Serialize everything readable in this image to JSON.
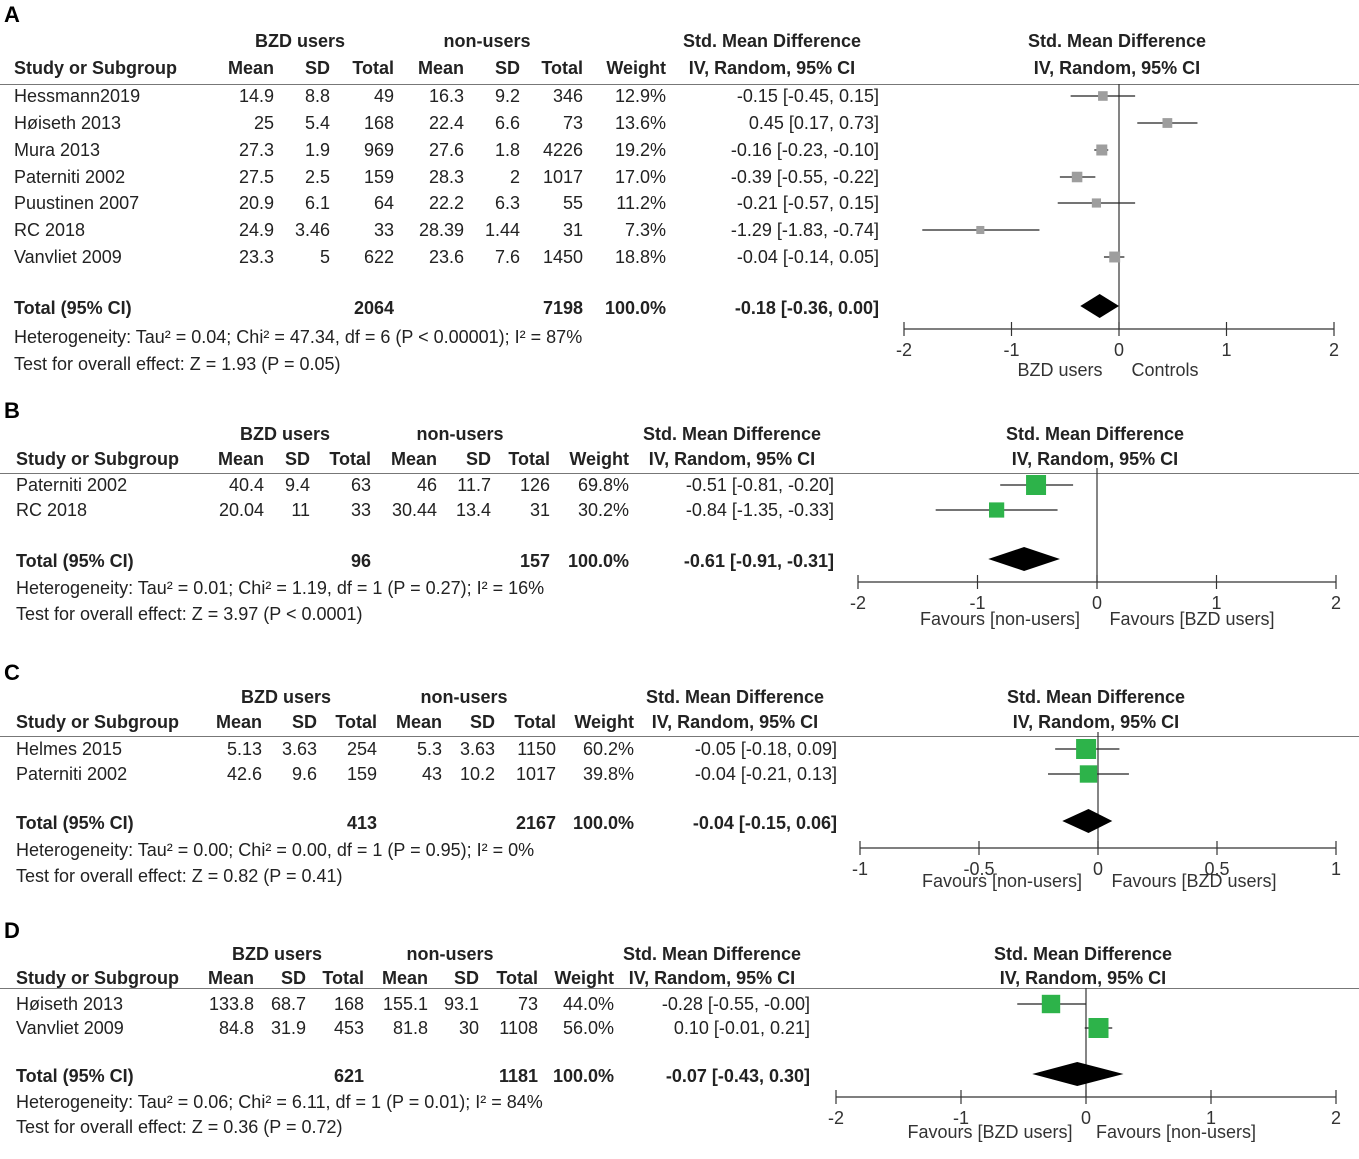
{
  "chart_data": [
    {
      "type": "forest",
      "panel_label": "A",
      "group1_label": "BZD users",
      "group2_label": "non-users",
      "effect_header": "Std. Mean Difference",
      "method_header": "IV, Random, 95% CI",
      "plot_header": "Std. Mean Difference",
      "plot_method_header": "IV, Random, 95% CI",
      "col_headers": [
        "Study or Subgroup",
        "Mean",
        "SD",
        "Total",
        "Mean",
        "SD",
        "Total",
        "Weight"
      ],
      "studies": [
        {
          "name": "Hessmann2019",
          "m1": "14.9",
          "sd1": "8.8",
          "n1": "49",
          "m2": "16.3",
          "sd2": "9.2",
          "n2": "346",
          "weight": "12.9%",
          "ci_text": "-0.15 [-0.45, 0.15]",
          "est": -0.15,
          "lo": -0.45,
          "hi": 0.15,
          "w": 12.9
        },
        {
          "name": "Høiseth 2013",
          "m1": "25",
          "sd1": "5.4",
          "n1": "168",
          "m2": "22.4",
          "sd2": "6.6",
          "n2": "73",
          "weight": "13.6%",
          "ci_text": "0.45 [0.17, 0.73]",
          "est": 0.45,
          "lo": 0.17,
          "hi": 0.73,
          "w": 13.6
        },
        {
          "name": "Mura 2013",
          "m1": "27.3",
          "sd1": "1.9",
          "n1": "969",
          "m2": "27.6",
          "sd2": "1.8",
          "n2": "4226",
          "weight": "19.2%",
          "ci_text": "-0.16 [-0.23, -0.10]",
          "est": -0.16,
          "lo": -0.23,
          "hi": -0.1,
          "w": 19.2
        },
        {
          "name": "Paterniti 2002",
          "m1": "27.5",
          "sd1": "2.5",
          "n1": "159",
          "m2": "28.3",
          "sd2": "2",
          "n2": "1017",
          "weight": "17.0%",
          "ci_text": "-0.39 [-0.55, -0.22]",
          "est": -0.39,
          "lo": -0.55,
          "hi": -0.22,
          "w": 17.0
        },
        {
          "name": "Puustinen 2007",
          "m1": "20.9",
          "sd1": "6.1",
          "n1": "64",
          "m2": "22.2",
          "sd2": "6.3",
          "n2": "55",
          "weight": "11.2%",
          "ci_text": "-0.21 [-0.57, 0.15]",
          "est": -0.21,
          "lo": -0.57,
          "hi": 0.15,
          "w": 11.2
        },
        {
          "name": "RC 2018",
          "m1": "24.9",
          "sd1": "3.46",
          "n1": "33",
          "m2": "28.39",
          "sd2": "1.44",
          "n2": "31",
          "weight": "7.3%",
          "ci_text": "-1.29 [-1.83, -0.74]",
          "est": -1.29,
          "lo": -1.83,
          "hi": -0.74,
          "w": 7.3
        },
        {
          "name": "Vanvliet 2009",
          "m1": "23.3",
          "sd1": "5",
          "n1": "622",
          "m2": "23.6",
          "sd2": "7.6",
          "n2": "1450",
          "weight": "18.8%",
          "ci_text": "-0.04 [-0.14, 0.05]",
          "est": -0.04,
          "lo": -0.14,
          "hi": 0.05,
          "w": 18.8
        }
      ],
      "total": {
        "label": "Total (95% CI)",
        "n1": "2064",
        "n2": "7198",
        "weight": "100.0%",
        "ci_text": "-0.18 [-0.36, 0.00]",
        "est": -0.18,
        "lo": -0.36,
        "hi": 0.0
      },
      "heterogeneity": "Heterogeneity: Tau² = 0.04; Chi² = 47.34, df = 6 (P < 0.00001); I² = 87%",
      "overall": "Test for overall effect: Z = 1.93 (P = 0.05)",
      "axis": {
        "min": -2,
        "max": 2,
        "ticks": [
          -2,
          -1,
          0,
          1,
          2
        ],
        "tick_labels": [
          "-2",
          "-1",
          "0",
          "1",
          "2"
        ]
      },
      "favours_left": "BZD users",
      "favours_right": "Controls",
      "marker_color": "#9e9e9e"
    },
    {
      "type": "forest",
      "panel_label": "B",
      "group1_label": "BZD users",
      "group2_label": "non-users",
      "effect_header": "Std. Mean Difference",
      "method_header": "IV, Random, 95% CI",
      "plot_header": "Std. Mean Difference",
      "plot_method_header": "IV, Random, 95% CI",
      "col_headers": [
        "Study or Subgroup",
        "Mean",
        "SD",
        "Total",
        "Mean",
        "SD",
        "Total",
        "Weight"
      ],
      "studies": [
        {
          "name": "Paterniti 2002",
          "m1": "40.4",
          "sd1": "9.4",
          "n1": "63",
          "m2": "46",
          "sd2": "11.7",
          "n2": "126",
          "weight": "69.8%",
          "ci_text": "-0.51 [-0.81, -0.20]",
          "est": -0.51,
          "lo": -0.81,
          "hi": -0.2,
          "w": 69.8
        },
        {
          "name": "RC 2018",
          "m1": "20.04",
          "sd1": "11",
          "n1": "33",
          "m2": "30.44",
          "sd2": "13.4",
          "n2": "31",
          "weight": "30.2%",
          "ci_text": "-0.84 [-1.35, -0.33]",
          "est": -0.84,
          "lo": -1.35,
          "hi": -0.33,
          "w": 30.2
        }
      ],
      "total": {
        "label": "Total (95% CI)",
        "n1": "96",
        "n2": "157",
        "weight": "100.0%",
        "ci_text": "-0.61 [-0.91, -0.31]",
        "est": -0.61,
        "lo": -0.91,
        "hi": -0.31
      },
      "heterogeneity": "Heterogeneity: Tau² = 0.01; Chi² = 1.19, df = 1 (P = 0.27); I² = 16%",
      "overall": "Test for overall effect: Z = 3.97 (P < 0.0001)",
      "axis": {
        "min": -2,
        "max": 2,
        "ticks": [
          -2,
          -1,
          0,
          1,
          2
        ],
        "tick_labels": [
          "-2",
          "-1",
          "0",
          "1",
          "2"
        ]
      },
      "favours_left": "Favours [non-users]",
      "favours_right": "Favours [BZD users]",
      "marker_color": "#2db34a"
    },
    {
      "type": "forest",
      "panel_label": "C",
      "group1_label": "BZD users",
      "group2_label": "non-users",
      "effect_header": "Std. Mean Difference",
      "method_header": "IV, Random, 95% CI",
      "plot_header": "Std. Mean Difference",
      "plot_method_header": "IV, Random, 95% CI",
      "col_headers": [
        "Study or Subgroup",
        "Mean",
        "SD",
        "Total",
        "Mean",
        "SD",
        "Total",
        "Weight"
      ],
      "studies": [
        {
          "name": "Helmes 2015",
          "m1": "5.13",
          "sd1": "3.63",
          "n1": "254",
          "m2": "5.3",
          "sd2": "3.63",
          "n2": "1150",
          "weight": "60.2%",
          "ci_text": "-0.05 [-0.18, 0.09]",
          "est": -0.05,
          "lo": -0.18,
          "hi": 0.09,
          "w": 60.2
        },
        {
          "name": "Paterniti 2002",
          "m1": "42.6",
          "sd1": "9.6",
          "n1": "159",
          "m2": "43",
          "sd2": "10.2",
          "n2": "1017",
          "weight": "39.8%",
          "ci_text": "-0.04 [-0.21, 0.13]",
          "est": -0.04,
          "lo": -0.21,
          "hi": 0.13,
          "w": 39.8
        }
      ],
      "total": {
        "label": "Total (95% CI)",
        "n1": "413",
        "n2": "2167",
        "weight": "100.0%",
        "ci_text": "-0.04 [-0.15, 0.06]",
        "est": -0.04,
        "lo": -0.15,
        "hi": 0.06
      },
      "heterogeneity": "Heterogeneity: Tau² = 0.00; Chi² = 0.00, df = 1 (P = 0.95); I² = 0%",
      "overall": "Test for overall effect: Z = 0.82 (P = 0.41)",
      "axis": {
        "min": -1,
        "max": 1,
        "ticks": [
          -1,
          -0.5,
          0,
          0.5,
          1
        ],
        "tick_labels": [
          "-1",
          "-0.5",
          "0",
          "0.5",
          "1"
        ]
      },
      "favours_left": "Favours [non-users]",
      "favours_right": "Favours [BZD users]",
      "marker_color": "#2db34a"
    },
    {
      "type": "forest",
      "panel_label": "D",
      "group1_label": "BZD users",
      "group2_label": "non-users",
      "effect_header": "Std. Mean Difference",
      "method_header": "IV, Random, 95% CI",
      "plot_header": "Std. Mean Difference",
      "plot_method_header": "IV, Random, 95% CI",
      "col_headers": [
        "Study or Subgroup",
        "Mean",
        "SD",
        "Total",
        "Mean",
        "SD",
        "Total",
        "Weight"
      ],
      "studies": [
        {
          "name": "Høiseth 2013",
          "m1": "133.8",
          "sd1": "68.7",
          "n1": "168",
          "m2": "155.1",
          "sd2": "93.1",
          "n2": "73",
          "weight": "44.0%",
          "ci_text": "-0.28 [-0.55, -0.00]",
          "est": -0.28,
          "lo": -0.55,
          "hi": 0.0,
          "w": 44.0
        },
        {
          "name": "Vanvliet 2009",
          "m1": "84.8",
          "sd1": "31.9",
          "n1": "453",
          "m2": "81.8",
          "sd2": "30",
          "n2": "1108",
          "weight": "56.0%",
          "ci_text": "0.10 [-0.01, 0.21]",
          "est": 0.1,
          "lo": -0.01,
          "hi": 0.21,
          "w": 56.0
        }
      ],
      "total": {
        "label": "Total (95% CI)",
        "n1": "621",
        "n2": "1181",
        "weight": "100.0%",
        "ci_text": "-0.07 [-0.43, 0.30]",
        "est": -0.07,
        "lo": -0.43,
        "hi": 0.3
      },
      "heterogeneity": "Heterogeneity: Tau² = 0.06; Chi² = 6.11, df = 1 (P = 0.01); I² = 84%",
      "overall": "Test for overall effect: Z = 0.36 (P = 0.72)",
      "axis": {
        "min": -2,
        "max": 2,
        "ticks": [
          -2,
          -1,
          0,
          1,
          2
        ],
        "tick_labels": [
          "-2",
          "-1",
          "0",
          "1",
          "2"
        ]
      },
      "favours_left": "Favours [BZD users]",
      "favours_right": "Favours [non-users]",
      "marker_color": "#2db34a"
    }
  ]
}
